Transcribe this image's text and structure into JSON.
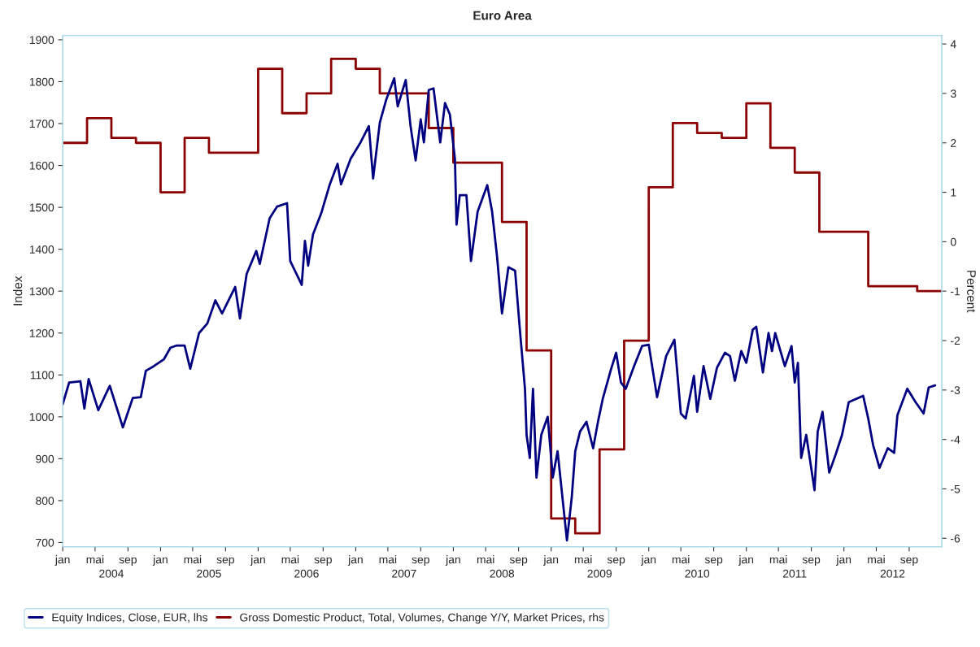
{
  "chart_data": {
    "type": "line",
    "title": "Euro Area",
    "ylabel": "Index",
    "y2label": "Percent",
    "xlim": [
      "2004-01-01",
      "2013-01-01"
    ],
    "xticks": [
      {
        "value": "2004-01-01",
        "label": "jan"
      },
      {
        "value": "2004-05-01",
        "label": "mai"
      },
      {
        "value": "2004-09-01",
        "label": "sep"
      },
      {
        "value": "2005-01-01",
        "label": "jan"
      },
      {
        "value": "2005-05-01",
        "label": "mai"
      },
      {
        "value": "2005-09-01",
        "label": "sep"
      },
      {
        "value": "2006-01-01",
        "label": "jan"
      },
      {
        "value": "2006-05-01",
        "label": "mai"
      },
      {
        "value": "2006-09-01",
        "label": "sep"
      },
      {
        "value": "2007-01-01",
        "label": "jan"
      },
      {
        "value": "2007-05-01",
        "label": "mai"
      },
      {
        "value": "2007-09-01",
        "label": "sep"
      },
      {
        "value": "2008-01-01",
        "label": "jan"
      },
      {
        "value": "2008-05-01",
        "label": "mai"
      },
      {
        "value": "2008-09-01",
        "label": "sep"
      },
      {
        "value": "2009-01-01",
        "label": "jan"
      },
      {
        "value": "2009-05-01",
        "label": "mai"
      },
      {
        "value": "2009-09-01",
        "label": "sep"
      },
      {
        "value": "2010-01-01",
        "label": "jan"
      },
      {
        "value": "2010-05-01",
        "label": "mai"
      },
      {
        "value": "2010-09-01",
        "label": "sep"
      },
      {
        "value": "2011-01-01",
        "label": "jan"
      },
      {
        "value": "2011-05-01",
        "label": "mai"
      },
      {
        "value": "2011-09-01",
        "label": "sep"
      },
      {
        "value": "2012-01-01",
        "label": "jan"
      },
      {
        "value": "2012-05-01",
        "label": "mai"
      },
      {
        "value": "2012-09-01",
        "label": "sep"
      }
    ],
    "x2lim": [
      "2004-01-01",
      "2013-01-01"
    ],
    "x2ticks": [
      {
        "value": "2004-07-01",
        "label": "2004"
      },
      {
        "value": "2005-07-01",
        "label": "2005"
      },
      {
        "value": "2006-07-01",
        "label": "2006"
      },
      {
        "value": "2007-07-01",
        "label": "2007"
      },
      {
        "value": "2008-07-01",
        "label": "2008"
      },
      {
        "value": "2009-07-01",
        "label": "2009"
      },
      {
        "value": "2010-07-01",
        "label": "2010"
      },
      {
        "value": "2011-07-01",
        "label": "2011"
      },
      {
        "value": "2012-07-01",
        "label": "2012"
      }
    ],
    "ylim": [
      690,
      1910
    ],
    "yticks": [
      700,
      800,
      900,
      1000,
      1100,
      1200,
      1300,
      1400,
      1500,
      1600,
      1700,
      1800,
      1900
    ],
    "y2lim": [
      -6.17,
      4.17
    ],
    "y2ticks": [
      -6,
      -5,
      -4,
      -3,
      -2,
      -1,
      0,
      1,
      2,
      3,
      4
    ],
    "legend": "bottom",
    "grid": false,
    "series": [
      {
        "name": "Equity Indices, Close, EUR, lhs",
        "color": "#000080",
        "x": [
          "2004-01-01",
          "2004-01-25",
          "2004-03-07",
          "2004-03-22",
          "2004-04-07",
          "2004-05-13",
          "2004-06-25",
          "2004-08-13",
          "2004-09-19",
          "2004-10-19",
          "2004-11-07",
          "2004-12-07",
          "2005-01-13",
          "2005-02-07",
          "2005-03-01",
          "2005-04-01",
          "2005-04-22",
          "2005-05-25",
          "2005-06-25",
          "2005-07-25",
          "2005-08-19",
          "2005-10-07",
          "2005-10-25",
          "2005-11-19",
          "2005-12-25",
          "2006-01-07",
          "2006-02-13",
          "2006-03-13",
          "2006-04-19",
          "2006-05-01",
          "2006-06-13",
          "2006-06-25",
          "2006-07-07",
          "2006-07-25",
          "2006-08-25",
          "2006-09-25",
          "2006-10-25",
          "2006-11-07",
          "2006-12-13",
          "2007-01-19",
          "2007-02-19",
          "2007-03-07",
          "2007-04-01",
          "2007-04-25",
          "2007-05-25",
          "2007-06-07",
          "2007-07-07",
          "2007-07-25",
          "2007-08-13",
          "2007-09-01",
          "2007-09-13",
          "2007-10-01",
          "2007-10-19",
          "2007-11-13",
          "2007-12-01",
          "2007-12-19",
          "2008-01-07",
          "2008-01-13",
          "2008-01-25",
          "2008-02-19",
          "2008-03-07",
          "2008-04-01",
          "2008-05-07",
          "2008-05-25",
          "2008-06-13",
          "2008-07-01",
          "2008-07-25",
          "2008-08-19",
          "2008-09-07",
          "2008-09-25",
          "2008-10-01",
          "2008-10-13",
          "2008-10-25",
          "2008-11-07",
          "2008-11-25",
          "2008-12-19",
          "2009-01-07",
          "2009-01-25",
          "2009-03-01",
          "2009-03-19",
          "2009-04-01",
          "2009-04-19",
          "2009-05-13",
          "2009-06-07",
          "2009-06-25",
          "2009-07-13",
          "2009-08-13",
          "2009-09-01",
          "2009-09-19",
          "2009-10-07",
          "2009-11-07",
          "2009-12-07",
          "2010-01-01",
          "2010-02-01",
          "2010-03-07",
          "2010-04-07",
          "2010-05-01",
          "2010-05-19",
          "2010-06-19",
          "2010-07-01",
          "2010-07-25",
          "2010-08-19",
          "2010-09-13",
          "2010-10-13",
          "2010-11-01",
          "2010-11-19",
          "2010-12-13",
          "2011-01-01",
          "2011-01-25",
          "2011-02-07",
          "2011-03-04",
          "2011-03-25",
          "2011-04-07",
          "2011-04-19",
          "2011-05-25",
          "2011-06-19",
          "2011-07-01",
          "2011-07-13",
          "2011-07-25",
          "2011-08-13",
          "2011-09-13",
          "2011-09-25",
          "2011-10-13",
          "2011-11-07",
          "2011-12-01",
          "2011-12-25",
          "2012-01-19",
          "2012-03-13",
          "2012-04-01",
          "2012-04-19",
          "2012-05-13",
          "2012-06-13",
          "2012-07-07",
          "2012-07-19",
          "2012-08-25",
          "2012-09-25",
          "2012-10-25",
          "2012-11-13",
          "2012-12-07"
        ],
        "values": [
          1030,
          1082,
          1085,
          1020,
          1090,
          1016,
          1074,
          975,
          1045,
          1047,
          1110,
          1121,
          1137,
          1165,
          1170,
          1170,
          1115,
          1200,
          1223,
          1278,
          1247,
          1310,
          1235,
          1341,
          1396,
          1365,
          1474,
          1502,
          1510,
          1372,
          1315,
          1420,
          1361,
          1435,
          1486,
          1553,
          1604,
          1555,
          1616,
          1655,
          1694,
          1569,
          1702,
          1757,
          1808,
          1741,
          1804,
          1694,
          1612,
          1710,
          1655,
          1780,
          1784,
          1655,
          1749,
          1722,
          1616,
          1459,
          1529,
          1529,
          1372,
          1490,
          1553,
          1490,
          1380,
          1247,
          1357,
          1349,
          1200,
          1067,
          957,
          902,
          1067,
          855,
          957,
          1000,
          855,
          918,
          705,
          808,
          918,
          965,
          988,
          925,
          988,
          1043,
          1114,
          1153,
          1082,
          1067,
          1121,
          1169,
          1172,
          1047,
          1145,
          1184,
          1008,
          996,
          1098,
          1012,
          1121,
          1043,
          1117,
          1153,
          1145,
          1086,
          1157,
          1129,
          1208,
          1215,
          1106,
          1200,
          1157,
          1200,
          1121,
          1169,
          1082,
          1129,
          902,
          957,
          825,
          965,
          1012,
          867,
          910,
          957,
          1035,
          1050,
          996,
          933,
          878,
          925,
          914,
          1004,
          1067,
          1035,
          1008,
          1070,
          1075
        ]
      },
      {
        "name": "Gross Domestic Product, Total, Volumes, Change Y/Y, Market Prices, rhs",
        "color": "#8b0000",
        "type": "step",
        "axis": "y2",
        "x": [
          "2004-01-01",
          "2004-04-01",
          "2004-07-01",
          "2004-10-01",
          "2005-01-01",
          "2005-04-01",
          "2005-07-01",
          "2005-10-01",
          "2006-01-01",
          "2006-04-01",
          "2006-07-01",
          "2006-10-01",
          "2007-01-01",
          "2007-04-01",
          "2007-07-01",
          "2007-10-01",
          "2008-01-01",
          "2008-04-01",
          "2008-07-01",
          "2008-10-01",
          "2009-01-01",
          "2009-04-01",
          "2009-07-01",
          "2009-10-01",
          "2010-01-01",
          "2010-04-01",
          "2010-07-01",
          "2010-10-01",
          "2011-01-01",
          "2011-04-01",
          "2011-07-01",
          "2011-10-01",
          "2012-01-01",
          "2012-04-01",
          "2012-07-01",
          "2012-10-01",
          "2012-12-31"
        ],
        "values": [
          2.0,
          2.5,
          2.1,
          2.0,
          1.0,
          2.1,
          1.8,
          1.8,
          3.5,
          2.6,
          3.0,
          3.7,
          3.5,
          3.0,
          3.0,
          2.3,
          1.6,
          1.6,
          0.4,
          -2.2,
          -5.6,
          -5.9,
          -4.2,
          -2.0,
          1.1,
          2.4,
          2.2,
          2.1,
          2.8,
          1.9,
          1.4,
          0.2,
          0.2,
          -0.9,
          -0.9,
          -1.0,
          -1.0
        ]
      }
    ]
  }
}
